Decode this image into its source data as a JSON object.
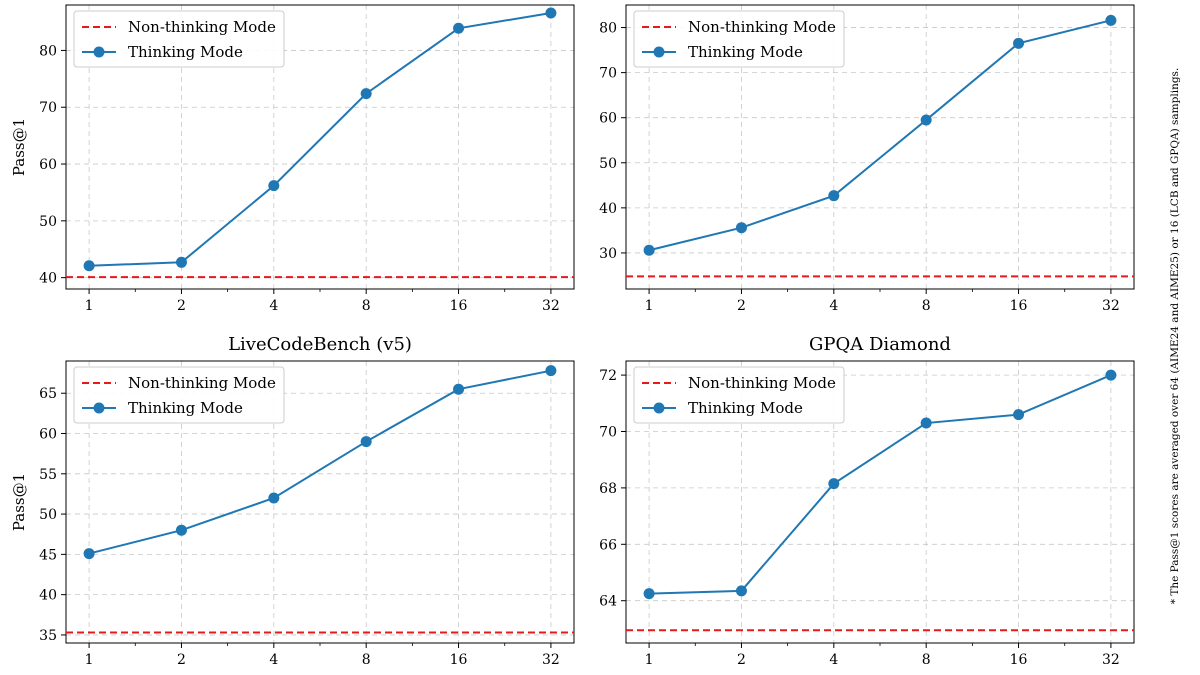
{
  "footnote": "* The Pass@1 scores are averaged over 64 (AIME24 and AIME25) or 16 (LCB and GPQA) samplings.",
  "colors": {
    "thinking": "#1f77b4",
    "non_thinking": "#e41a1c",
    "grid": "#c8c8c8",
    "axis": "#000000"
  },
  "chart_data": [
    {
      "type": "line",
      "title": "",
      "xlabel": "",
      "ylabel": "Pass@1",
      "x_scale": "log2",
      "x": [
        1,
        2,
        4,
        8,
        16,
        32
      ],
      "xticks": [
        "1",
        "2",
        "4",
        "8",
        "16",
        "32"
      ],
      "ylim": [
        38,
        88
      ],
      "yticks": [
        40,
        50,
        60,
        70,
        80
      ],
      "grid": true,
      "legend_position": "top-left",
      "series": [
        {
          "name": "Non-thinking Mode",
          "style": "dashed",
          "color": "#e41a1c",
          "values": [
            40.1,
            40.1,
            40.1,
            40.1,
            40.1,
            40.1
          ]
        },
        {
          "name": "Thinking Mode",
          "style": "line-marker",
          "color": "#1f77b4",
          "values": [
            42.1,
            42.7,
            56.2,
            72.4,
            83.9,
            86.6
          ]
        }
      ]
    },
    {
      "type": "line",
      "title": "",
      "xlabel": "",
      "ylabel": "",
      "x_scale": "log2",
      "x": [
        1,
        2,
        4,
        8,
        16,
        32
      ],
      "xticks": [
        "1",
        "2",
        "4",
        "8",
        "16",
        "32"
      ],
      "ylim": [
        22,
        85
      ],
      "yticks": [
        30,
        40,
        50,
        60,
        70,
        80
      ],
      "grid": true,
      "legend_position": "top-left",
      "series": [
        {
          "name": "Non-thinking Mode",
          "style": "dashed",
          "color": "#e41a1c",
          "values": [
            24.8,
            24.8,
            24.8,
            24.8,
            24.8,
            24.8
          ]
        },
        {
          "name": "Thinking Mode",
          "style": "line-marker",
          "color": "#1f77b4",
          "values": [
            30.6,
            35.6,
            42.7,
            59.5,
            76.5,
            81.6
          ]
        }
      ]
    },
    {
      "type": "line",
      "title": "LiveCodeBench (v5)",
      "xlabel": "",
      "ylabel": "Pass@1",
      "x_scale": "log2",
      "x": [
        1,
        2,
        4,
        8,
        16,
        32
      ],
      "xticks": [
        "1",
        "2",
        "4",
        "8",
        "16",
        "32"
      ],
      "ylim": [
        34,
        69
      ],
      "yticks": [
        35,
        40,
        45,
        50,
        55,
        60,
        65
      ],
      "grid": true,
      "legend_position": "top-left",
      "series": [
        {
          "name": "Non-thinking Mode",
          "style": "dashed",
          "color": "#e41a1c",
          "values": [
            35.3,
            35.3,
            35.3,
            35.3,
            35.3,
            35.3
          ]
        },
        {
          "name": "Thinking Mode",
          "style": "line-marker",
          "color": "#1f77b4",
          "values": [
            45.1,
            48.0,
            52.0,
            59.0,
            65.5,
            67.8
          ]
        }
      ]
    },
    {
      "type": "line",
      "title": "GPQA Diamond",
      "xlabel": "",
      "ylabel": "",
      "x_scale": "log2",
      "x": [
        1,
        2,
        4,
        8,
        16,
        32
      ],
      "xticks": [
        "1",
        "2",
        "4",
        "8",
        "16",
        "32"
      ],
      "ylim": [
        62.5,
        72.5
      ],
      "yticks": [
        64,
        66,
        68,
        70,
        72
      ],
      "grid": true,
      "legend_position": "top-left",
      "series": [
        {
          "name": "Non-thinking Mode",
          "style": "dashed",
          "color": "#e41a1c",
          "values": [
            62.95,
            62.95,
            62.95,
            62.95,
            62.95,
            62.95
          ]
        },
        {
          "name": "Thinking Mode",
          "style": "line-marker",
          "color": "#1f77b4",
          "values": [
            64.25,
            64.35,
            68.15,
            70.3,
            70.6,
            72.0
          ]
        }
      ]
    }
  ]
}
